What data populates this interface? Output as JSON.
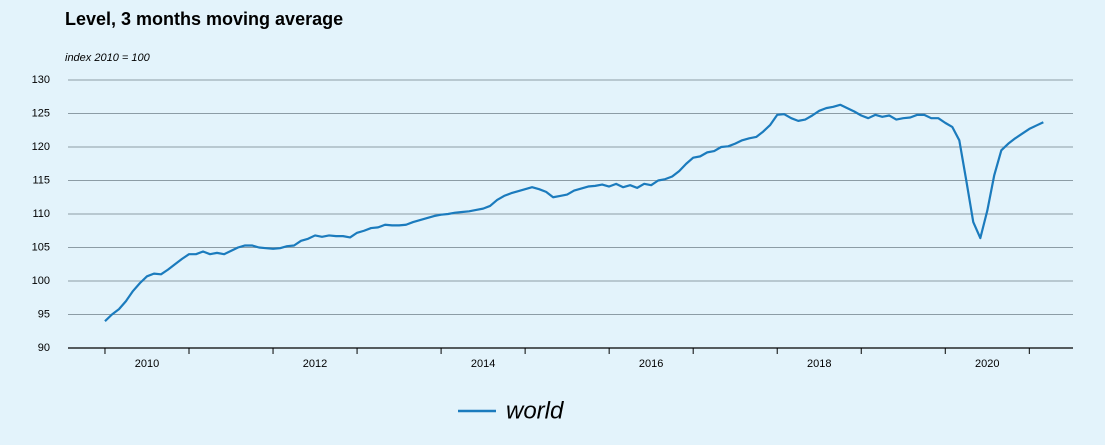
{
  "chart_data": {
    "type": "line",
    "title": "Level, 3 months moving average",
    "subtitle": "index 2010 = 100",
    "x": [
      2010,
      2010.083,
      2010.167,
      2010.25,
      2010.333,
      2010.417,
      2010.5,
      2010.583,
      2010.667,
      2010.75,
      2010.833,
      2010.917,
      2011,
      2011.083,
      2011.167,
      2011.25,
      2011.333,
      2011.417,
      2011.5,
      2011.583,
      2011.667,
      2011.75,
      2011.833,
      2011.917,
      2012,
      2012.083,
      2012.167,
      2012.25,
      2012.333,
      2012.417,
      2012.5,
      2012.583,
      2012.667,
      2012.75,
      2012.833,
      2012.917,
      2013,
      2013.083,
      2013.167,
      2013.25,
      2013.333,
      2013.417,
      2013.5,
      2013.583,
      2013.667,
      2013.75,
      2013.833,
      2013.917,
      2014,
      2014.083,
      2014.167,
      2014.25,
      2014.333,
      2014.417,
      2014.5,
      2014.583,
      2014.667,
      2014.75,
      2014.833,
      2014.917,
      2015,
      2015.083,
      2015.167,
      2015.25,
      2015.333,
      2015.417,
      2015.5,
      2015.583,
      2015.667,
      2015.75,
      2015.833,
      2015.917,
      2016,
      2016.083,
      2016.167,
      2016.25,
      2016.333,
      2016.417,
      2016.5,
      2016.583,
      2016.667,
      2016.75,
      2016.833,
      2016.917,
      2017,
      2017.083,
      2017.167,
      2017.25,
      2017.333,
      2017.417,
      2017.5,
      2017.583,
      2017.667,
      2017.75,
      2017.833,
      2017.917,
      2018,
      2018.083,
      2018.167,
      2018.25,
      2018.333,
      2018.417,
      2018.5,
      2018.583,
      2018.667,
      2018.75,
      2018.833,
      2018.917,
      2019,
      2019.083,
      2019.167,
      2019.25,
      2019.333,
      2019.417,
      2019.5,
      2019.583,
      2019.667,
      2019.75,
      2019.833,
      2019.917,
      2020,
      2020.083,
      2020.167,
      2020.25,
      2020.333,
      2020.417,
      2020.5,
      2020.583,
      2020.667,
      2020.75,
      2020.833,
      2020.917,
      2021,
      2021.083,
      2021.167
    ],
    "series": [
      {
        "name": "world",
        "color": "#1b7bbd",
        "values": [
          94,
          95,
          95.8,
          97,
          98.5,
          99.7,
          100.7,
          101.1,
          101,
          101.7,
          102.5,
          103.3,
          104,
          104,
          104.4,
          104,
          104.2,
          104,
          104.5,
          105,
          105.3,
          105.3,
          105,
          104.9,
          104.8,
          104.9,
          105.2,
          105.3,
          106,
          106.3,
          106.8,
          106.6,
          106.8,
          106.7,
          106.7,
          106.5,
          107.2,
          107.5,
          107.9,
          108,
          108.4,
          108.3,
          108.3,
          108.4,
          108.8,
          109.1,
          109.4,
          109.7,
          109.9,
          110,
          110.2,
          110.3,
          110.4,
          110.6,
          110.8,
          111.2,
          112.1,
          112.7,
          113.1,
          113.4,
          113.7,
          114,
          113.7,
          113.3,
          112.5,
          112.7,
          112.9,
          113.5,
          113.8,
          114.1,
          114.2,
          114.4,
          114.1,
          114.5,
          114,
          114.3,
          113.9,
          114.5,
          114.3,
          115,
          115.2,
          115.6,
          116.4,
          117.5,
          118.4,
          118.6,
          119.2,
          119.4,
          120,
          120.1,
          120.5,
          121,
          121.3,
          121.5,
          122.3,
          123.3,
          124.8,
          124.9,
          124.3,
          123.9,
          124.1,
          124.7,
          125.4,
          125.8,
          126,
          126.3,
          125.8,
          125.3,
          124.7,
          124.3,
          124.8,
          124.5,
          124.7,
          124.1,
          124.3,
          124.4,
          124.8,
          124.8,
          124.3,
          124.3,
          123.6,
          123,
          121,
          115,
          108.8,
          106.4,
          110.5,
          115.8,
          119.5,
          120.5,
          121.3,
          122,
          122.7,
          123.2,
          123.7
        ]
      }
    ],
    "xlim": [
      2009.56,
      2021.52
    ],
    "xticks": [
      {
        "value": 2010.5,
        "label": "2010"
      },
      {
        "value": 2012.5,
        "label": "2012"
      },
      {
        "value": 2014.5,
        "label": "2014"
      },
      {
        "value": 2016.5,
        "label": "2016"
      },
      {
        "value": 2018.5,
        "label": "2018"
      },
      {
        "value": 2020.5,
        "label": "2020"
      }
    ],
    "xtick_marks": [
      2010,
      2011,
      2012,
      2013,
      2014,
      2015,
      2016,
      2017,
      2018,
      2019,
      2020,
      2021
    ],
    "ylim": [
      90,
      130
    ],
    "yticks": [
      90,
      95,
      100,
      105,
      110,
      115,
      120,
      125,
      130
    ],
    "grid": true
  }
}
